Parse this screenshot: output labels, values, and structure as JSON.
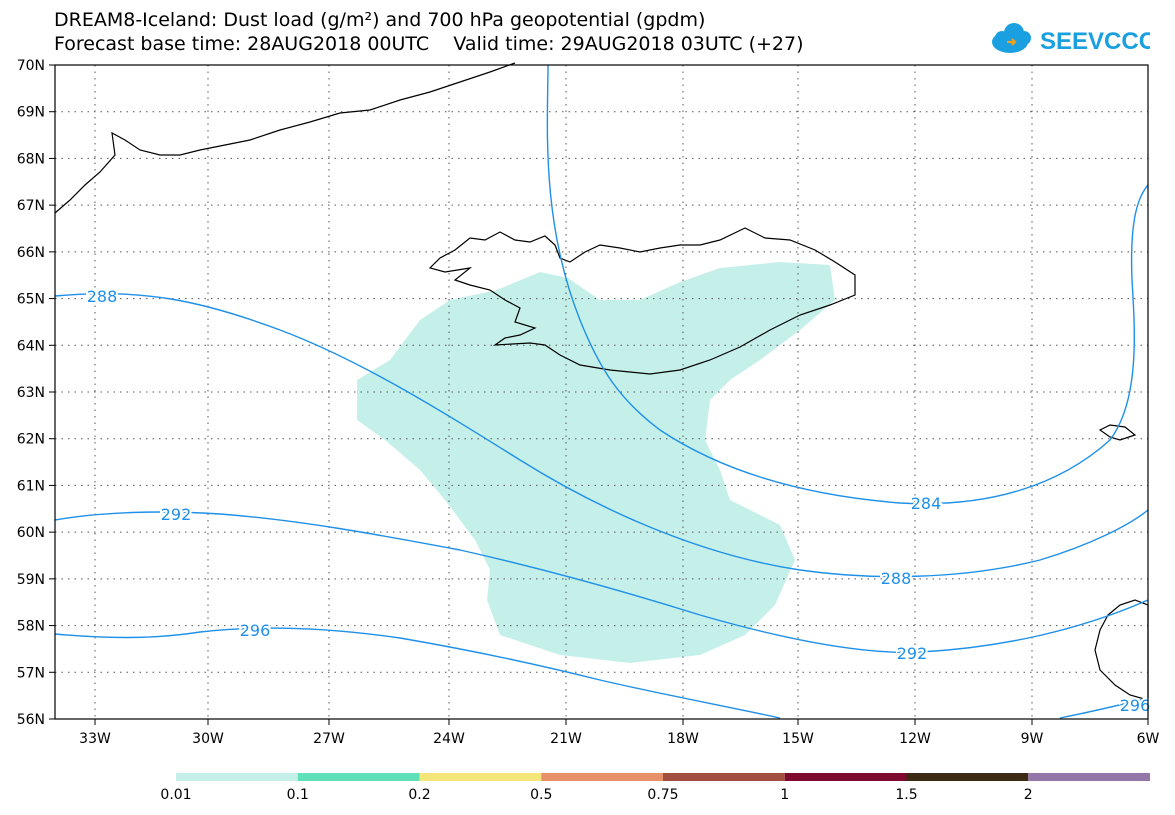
{
  "title": {
    "line1": "DREAM8-Iceland: Dust load (g/m²) and 700 hPa geopotential (gpdm)",
    "line2": "Forecast base time: 28AUG2018 00UTC    Valid time: 29AUG2018 03UTC (+27)"
  },
  "logo": {
    "text": "SEEVCCC",
    "icon": "cloud-icon",
    "color": "#1aa0e0"
  },
  "map": {
    "lon_ticks": [
      "33W",
      "30W",
      "27W",
      "24W",
      "21W",
      "18W",
      "15W",
      "12W",
      "9W",
      "6W"
    ],
    "lat_ticks": [
      "70N",
      "69N",
      "68N",
      "67N",
      "66N",
      "65N",
      "64N",
      "63N",
      "62N",
      "61N",
      "60N",
      "59N",
      "58N",
      "57N",
      "56N"
    ],
    "contour_color": "#1e90e8",
    "contour_labels": [
      "288",
      "284",
      "292",
      "288",
      "296",
      "292",
      "296"
    ],
    "dust_fill_color": "#c5f0ea",
    "grid": true
  },
  "colorbar": {
    "colors": [
      "#c5f0ea",
      "#5fe0b8",
      "#f5e67a",
      "#e8906a",
      "#a24f3f",
      "#7e0a30",
      "#3d2a14",
      "#9576a8"
    ],
    "labels": [
      "0.01",
      "0.1",
      "0.2",
      "0.5",
      "0.75",
      "1",
      "1.5",
      "2"
    ]
  }
}
